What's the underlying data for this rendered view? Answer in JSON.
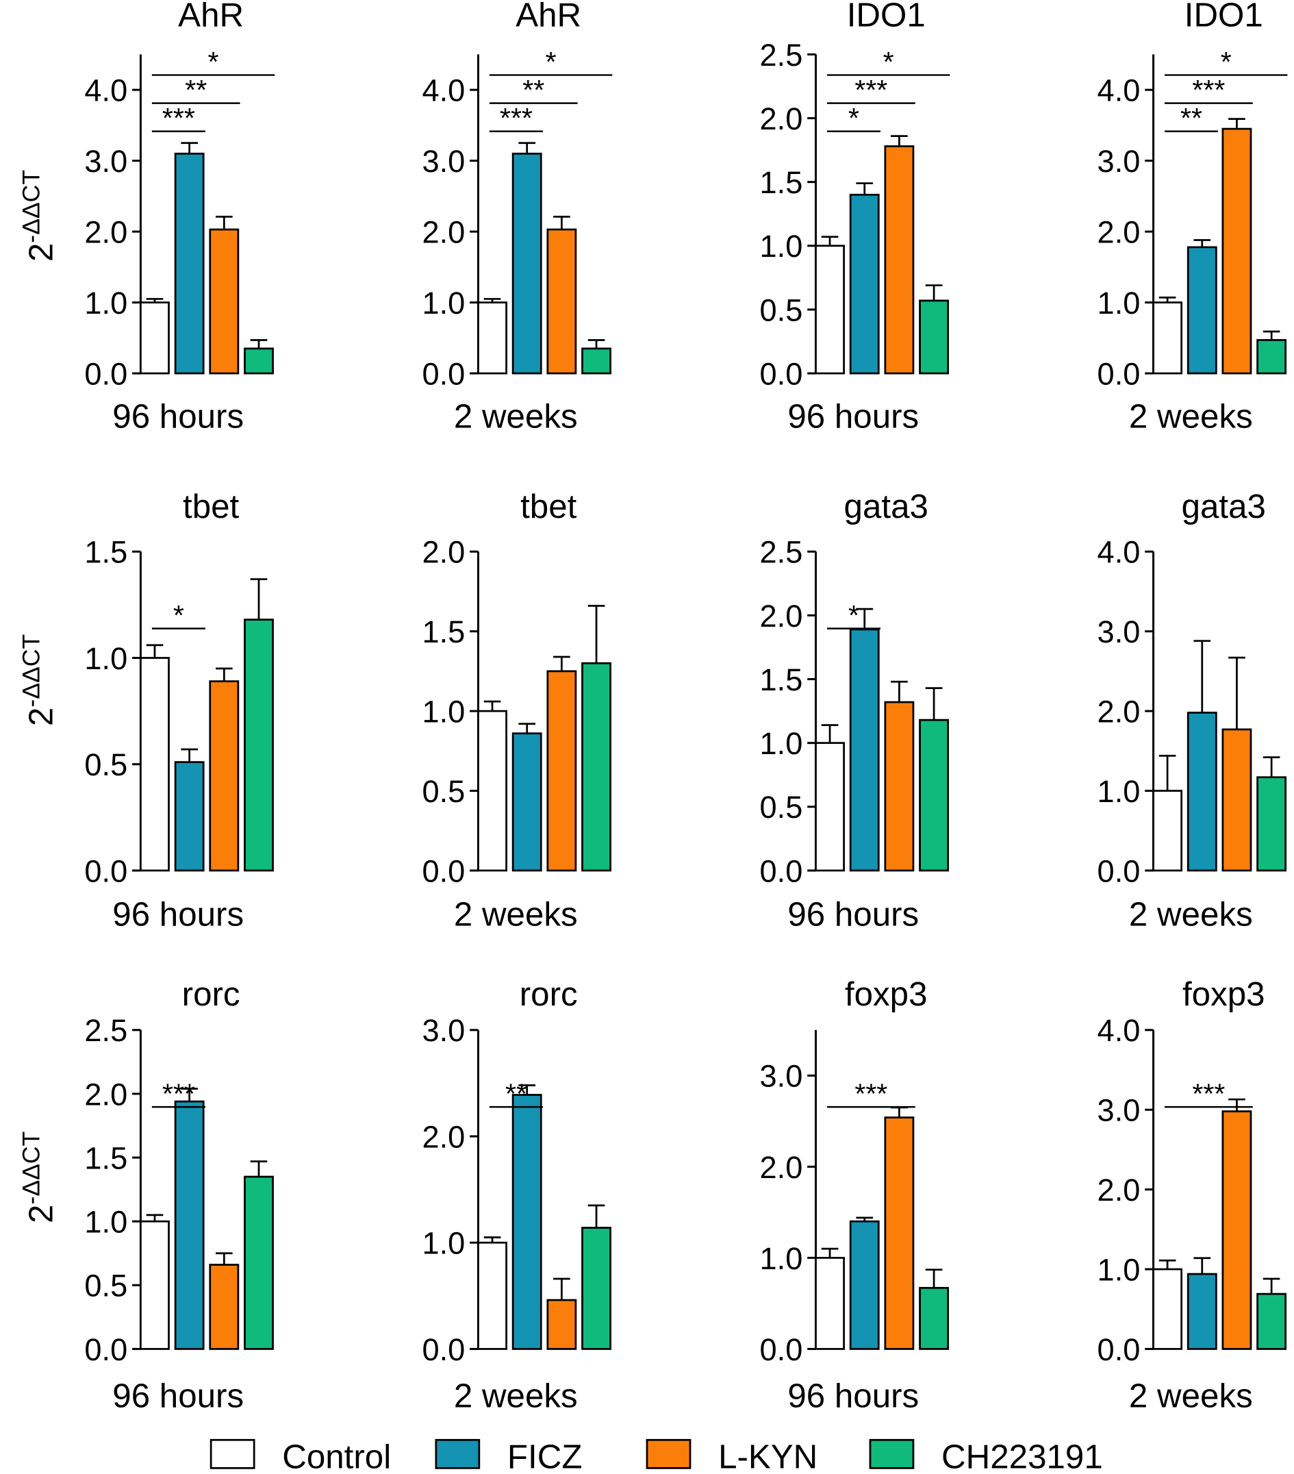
{
  "y_axis_label_base": "2",
  "y_axis_label_exp": "-ΔΔCT",
  "legend": [
    {
      "name": "Control",
      "color": "#ffffff"
    },
    {
      "name": "FICZ",
      "color": "#1493b3"
    },
    {
      "name": "L-KYN",
      "color": "#fb7d0a"
    },
    {
      "name": "CH223191",
      "color": "#0fba7c"
    }
  ],
  "chart_data": [
    {
      "type": "bar",
      "title": "AhR",
      "xlabel": "96 hours",
      "ylabel": "2-ΔΔCT",
      "categories": [
        "Control",
        "FICZ",
        "L-KYN",
        "CH223191"
      ],
      "values": [
        1.0,
        3.1,
        2.03,
        0.35
      ],
      "errors": [
        0.05,
        0.15,
        0.18,
        0.12
      ],
      "ylim": [
        0,
        4.5
      ],
      "yticks": [
        0,
        1,
        2,
        3,
        4
      ],
      "ticklabels": [
        "0.0",
        "1.0",
        "2.0",
        "3.0",
        "4.0"
      ],
      "significance": [
        {
          "from": 0,
          "to": 1,
          "label": "***"
        },
        {
          "from": 0,
          "to": 2,
          "label": "**"
        },
        {
          "from": 0,
          "to": 3,
          "label": "*"
        }
      ]
    },
    {
      "type": "bar",
      "title": "AhR",
      "xlabel": "2 weeks",
      "ylabel": "2-ΔΔCT",
      "categories": [
        "Control",
        "FICZ",
        "L-KYN",
        "CH223191"
      ],
      "values": [
        1.0,
        3.1,
        2.03,
        0.35
      ],
      "errors": [
        0.05,
        0.15,
        0.18,
        0.12
      ],
      "ylim": [
        0,
        4.5
      ],
      "yticks": [
        0,
        1,
        2,
        3,
        4
      ],
      "ticklabels": [
        "0.0",
        "1.0",
        "2.0",
        "3.0",
        "4.0"
      ],
      "significance": [
        {
          "from": 0,
          "to": 1,
          "label": "***"
        },
        {
          "from": 0,
          "to": 2,
          "label": "**"
        },
        {
          "from": 0,
          "to": 3,
          "label": "*"
        }
      ]
    },
    {
      "type": "bar",
      "title": "IDO1",
      "xlabel": "96 hours",
      "ylabel": "2-ΔΔCT",
      "categories": [
        "Control",
        "FICZ",
        "L-KYN",
        "CH223191"
      ],
      "values": [
        1.0,
        1.4,
        1.78,
        0.57
      ],
      "errors": [
        0.07,
        0.09,
        0.08,
        0.12
      ],
      "ylim": [
        0,
        2.5
      ],
      "yticks": [
        0,
        0.5,
        1,
        1.5,
        2,
        2.5
      ],
      "ticklabels": [
        "0.0",
        "0.5",
        "1.0",
        "1.5",
        "2.0",
        "2.5"
      ],
      "significance": [
        {
          "from": 0,
          "to": 1,
          "label": "*"
        },
        {
          "from": 0,
          "to": 2,
          "label": "***"
        },
        {
          "from": 0,
          "to": 3,
          "label": "*"
        }
      ]
    },
    {
      "type": "bar",
      "title": "IDO1",
      "xlabel": "2 weeks",
      "ylabel": "2-ΔΔCT",
      "categories": [
        "Control",
        "FICZ",
        "L-KYN",
        "CH223191"
      ],
      "values": [
        1.0,
        1.78,
        3.45,
        0.47
      ],
      "errors": [
        0.07,
        0.1,
        0.14,
        0.12
      ],
      "ylim": [
        0,
        4.5
      ],
      "yticks": [
        0,
        1,
        2,
        3,
        4
      ],
      "ticklabels": [
        "0.0",
        "1.0",
        "2.0",
        "3.0",
        "4.0"
      ],
      "significance": [
        {
          "from": 0,
          "to": 1,
          "label": "**"
        },
        {
          "from": 0,
          "to": 2,
          "label": "***"
        },
        {
          "from": 0,
          "to": 3,
          "label": "*"
        }
      ]
    },
    {
      "type": "bar",
      "title": "tbet",
      "xlabel": "96 hours",
      "ylabel": "2-ΔΔCT",
      "categories": [
        "Control",
        "FICZ",
        "L-KYN",
        "CH223191"
      ],
      "values": [
        1.0,
        0.51,
        0.89,
        1.18
      ],
      "errors": [
        0.06,
        0.06,
        0.06,
        0.19
      ],
      "ylim": [
        0,
        1.5
      ],
      "yticks": [
        0,
        0.5,
        1,
        1.5
      ],
      "ticklabels": [
        "0.0",
        "0.5",
        "1.0",
        "1.5"
      ],
      "significance": [
        {
          "from": 0,
          "to": 1,
          "label": "*"
        }
      ]
    },
    {
      "type": "bar",
      "title": "tbet",
      "xlabel": "2 weeks",
      "ylabel": "2-ΔΔCT",
      "categories": [
        "Control",
        "FICZ",
        "L-KYN",
        "CH223191"
      ],
      "values": [
        1.0,
        0.86,
        1.25,
        1.3
      ],
      "errors": [
        0.06,
        0.06,
        0.09,
        0.36
      ],
      "ylim": [
        0,
        2.0
      ],
      "yticks": [
        0,
        0.5,
        1,
        1.5,
        2
      ],
      "ticklabels": [
        "0.0",
        "0.5",
        "1.0",
        "1.5",
        "2.0"
      ],
      "significance": []
    },
    {
      "type": "bar",
      "title": "gata3",
      "xlabel": "96 hours",
      "ylabel": "2-ΔΔCT",
      "categories": [
        "Control",
        "FICZ",
        "L-KYN",
        "CH223191"
      ],
      "values": [
        1.0,
        1.89,
        1.32,
        1.18
      ],
      "errors": [
        0.14,
        0.16,
        0.16,
        0.25
      ],
      "ylim": [
        0,
        2.5
      ],
      "yticks": [
        0,
        0.5,
        1,
        1.5,
        2,
        2.5
      ],
      "ticklabels": [
        "0.0",
        "0.5",
        "1.0",
        "1.5",
        "2.0",
        "2.5"
      ],
      "significance": [
        {
          "from": 0,
          "to": 1,
          "label": "*"
        }
      ]
    },
    {
      "type": "bar",
      "title": "gata3",
      "xlabel": "2 weeks",
      "ylabel": "2-ΔΔCT",
      "categories": [
        "Control",
        "FICZ",
        "L-KYN",
        "CH223191"
      ],
      "values": [
        1.0,
        1.98,
        1.77,
        1.17
      ],
      "errors": [
        0.44,
        0.9,
        0.9,
        0.25
      ],
      "ylim": [
        0,
        4.0
      ],
      "yticks": [
        0,
        1,
        2,
        3,
        4
      ],
      "ticklabels": [
        "0.0",
        "1.0",
        "2.0",
        "3.0",
        "4.0"
      ],
      "significance": []
    },
    {
      "type": "bar",
      "title": "rorc",
      "xlabel": "96 hours",
      "ylabel": "2-ΔΔCT",
      "categories": [
        "Control",
        "FICZ",
        "L-KYN",
        "CH223191"
      ],
      "values": [
        1.0,
        1.94,
        0.66,
        1.35
      ],
      "errors": [
        0.05,
        0.1,
        0.09,
        0.12
      ],
      "ylim": [
        0,
        2.5
      ],
      "yticks": [
        0,
        0.5,
        1,
        1.5,
        2,
        2.5
      ],
      "ticklabels": [
        "0.0",
        "0.5",
        "1.0",
        "1.5",
        "2.0",
        "2.5"
      ],
      "significance": [
        {
          "from": 0,
          "to": 1,
          "label": "***"
        }
      ]
    },
    {
      "type": "bar",
      "title": "rorc",
      "xlabel": "2 weeks",
      "ylabel": "2-ΔΔCT",
      "categories": [
        "Control",
        "FICZ",
        "L-KYN",
        "CH223191"
      ],
      "values": [
        1.0,
        2.39,
        0.46,
        1.14
      ],
      "errors": [
        0.05,
        0.09,
        0.2,
        0.21
      ],
      "ylim": [
        0,
        3.0
      ],
      "yticks": [
        0,
        1,
        2,
        3
      ],
      "ticklabels": [
        "0.0",
        "1.0",
        "2.0",
        "3.0"
      ],
      "significance": [
        {
          "from": 0,
          "to": 1,
          "label": "**"
        }
      ]
    },
    {
      "type": "bar",
      "title": "foxp3",
      "xlabel": "96 hours",
      "ylabel": "2-ΔΔCT",
      "categories": [
        "Control",
        "FICZ",
        "L-KYN",
        "CH223191"
      ],
      "values": [
        1.0,
        1.4,
        2.54,
        0.67
      ],
      "errors": [
        0.1,
        0.04,
        0.11,
        0.2
      ],
      "ylim": [
        0,
        3.5
      ],
      "yticks": [
        0,
        1,
        2,
        3
      ],
      "ticklabels": [
        "0.0",
        "1.0",
        "2.0",
        "3.0"
      ],
      "significance": [
        {
          "from": 0,
          "to": 2,
          "label": "***"
        }
      ]
    },
    {
      "type": "bar",
      "title": "foxp3",
      "xlabel": "2 weeks",
      "ylabel": "2-ΔΔCT",
      "categories": [
        "Control",
        "FICZ",
        "L-KYN",
        "CH223191"
      ],
      "values": [
        1.0,
        0.94,
        2.98,
        0.69
      ],
      "errors": [
        0.11,
        0.2,
        0.15,
        0.19
      ],
      "ylim": [
        0,
        4.0
      ],
      "yticks": [
        0,
        1,
        2,
        3,
        4
      ],
      "ticklabels": [
        "0.0",
        "1.0",
        "2.0",
        "3.0",
        "4.0"
      ],
      "significance": [
        {
          "from": 0,
          "to": 2,
          "label": "***"
        }
      ]
    }
  ]
}
